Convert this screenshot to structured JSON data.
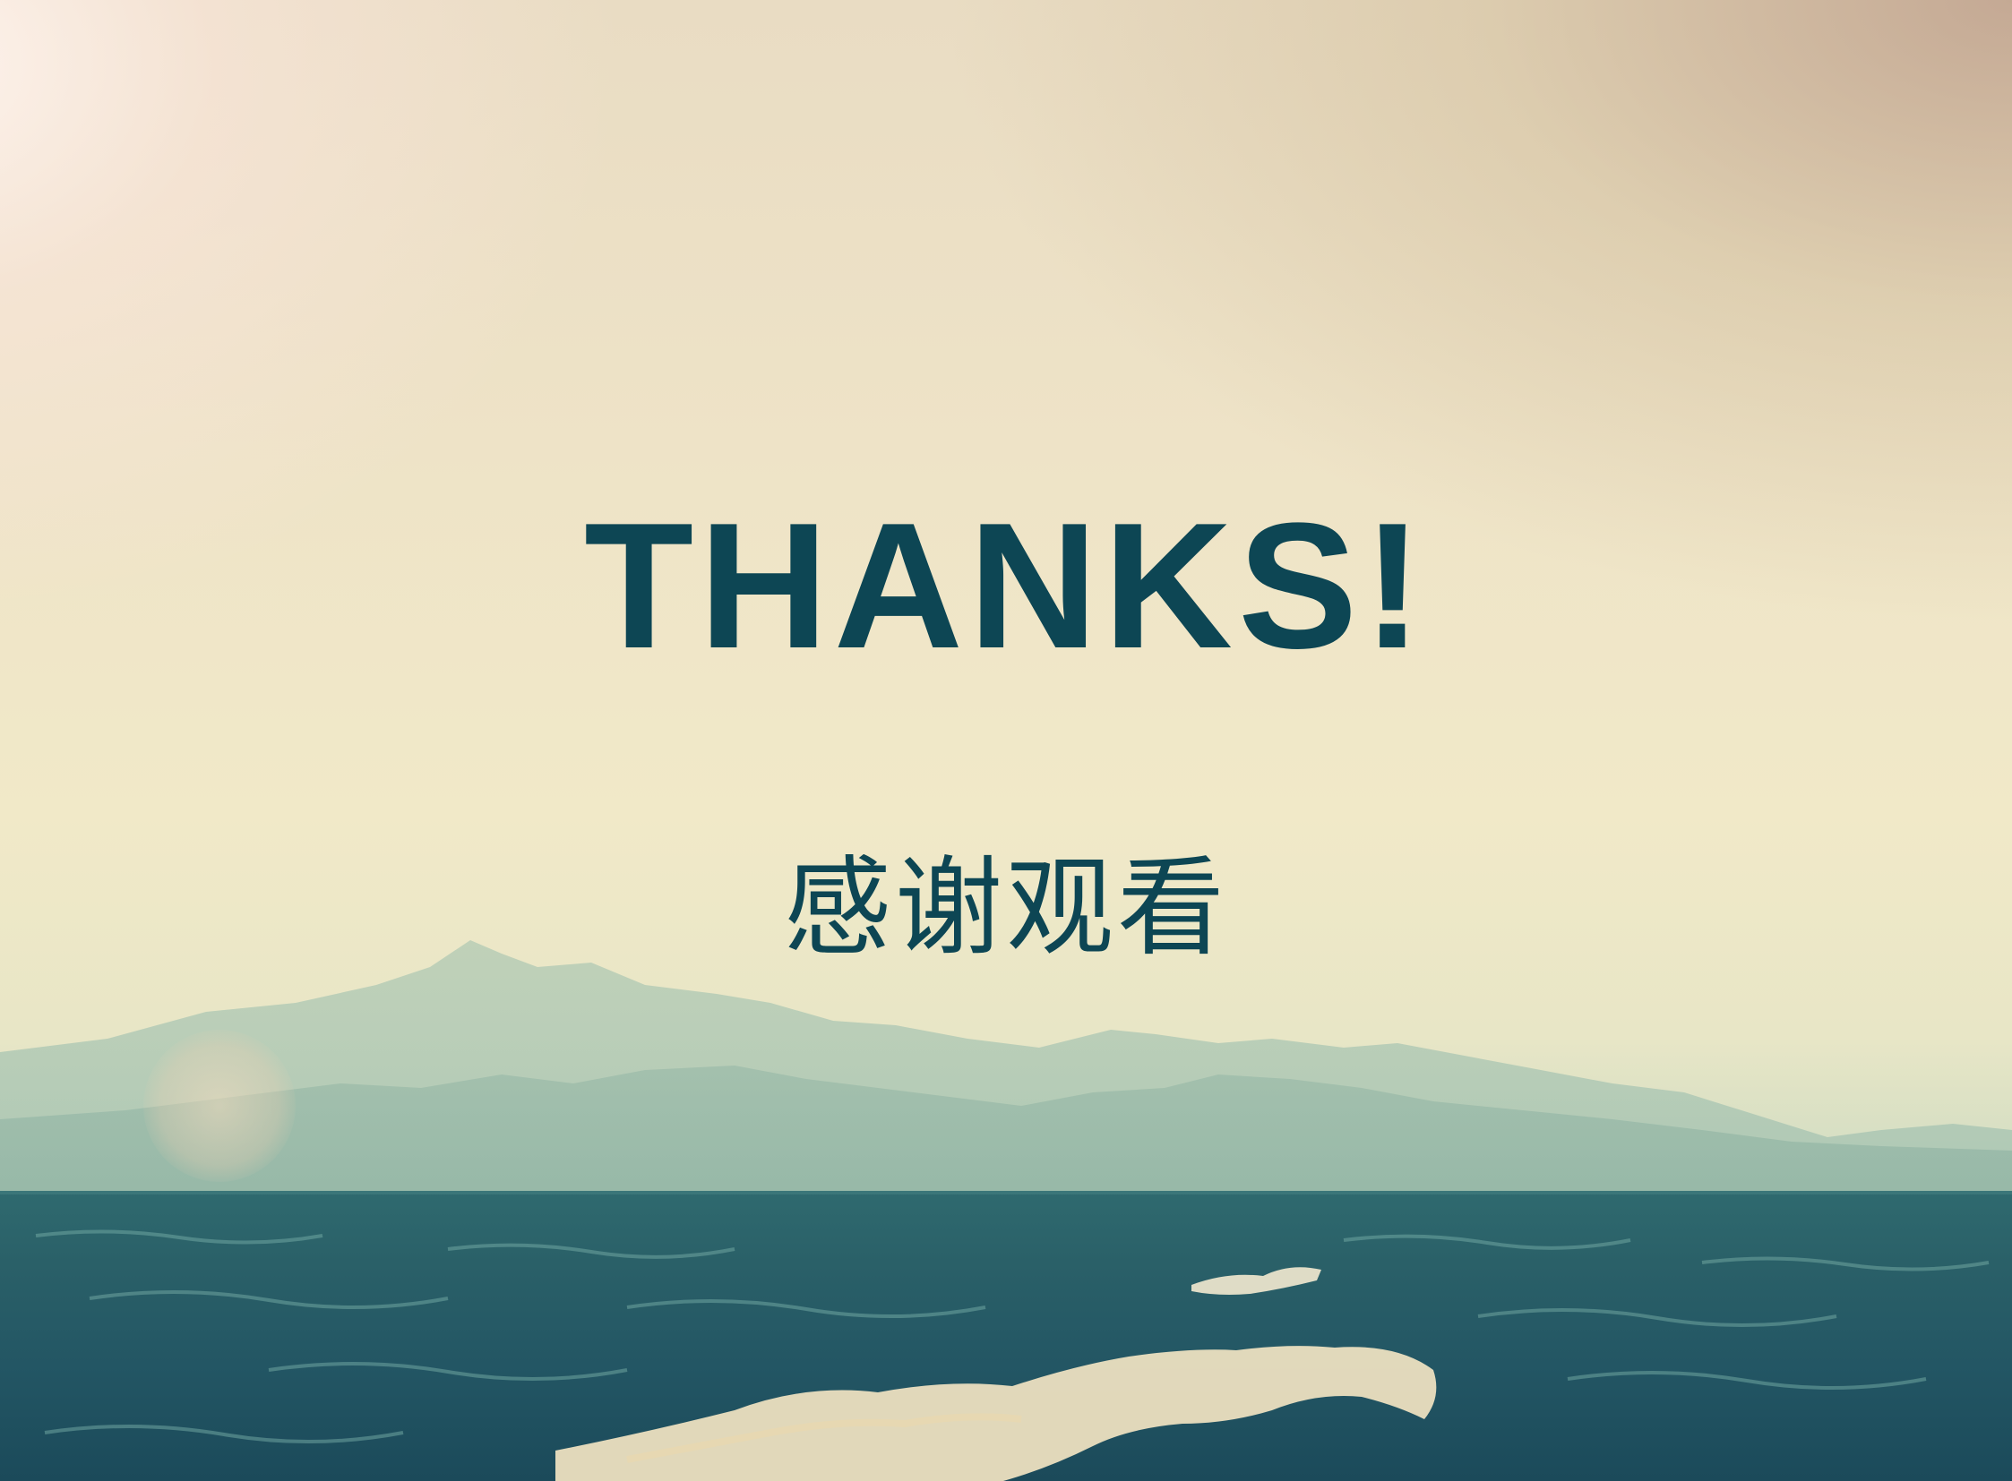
{
  "slide": {
    "title": "THANKS!",
    "subtitle": "感谢观看"
  },
  "colors": {
    "text": "#0d4654",
    "sky_light": "#f1e9c8",
    "sea_dark": "#1f5560",
    "mountain": "#9fbfae"
  },
  "background": {
    "elements": [
      "sky",
      "sun-glow",
      "mountains",
      "sea",
      "waves"
    ]
  }
}
